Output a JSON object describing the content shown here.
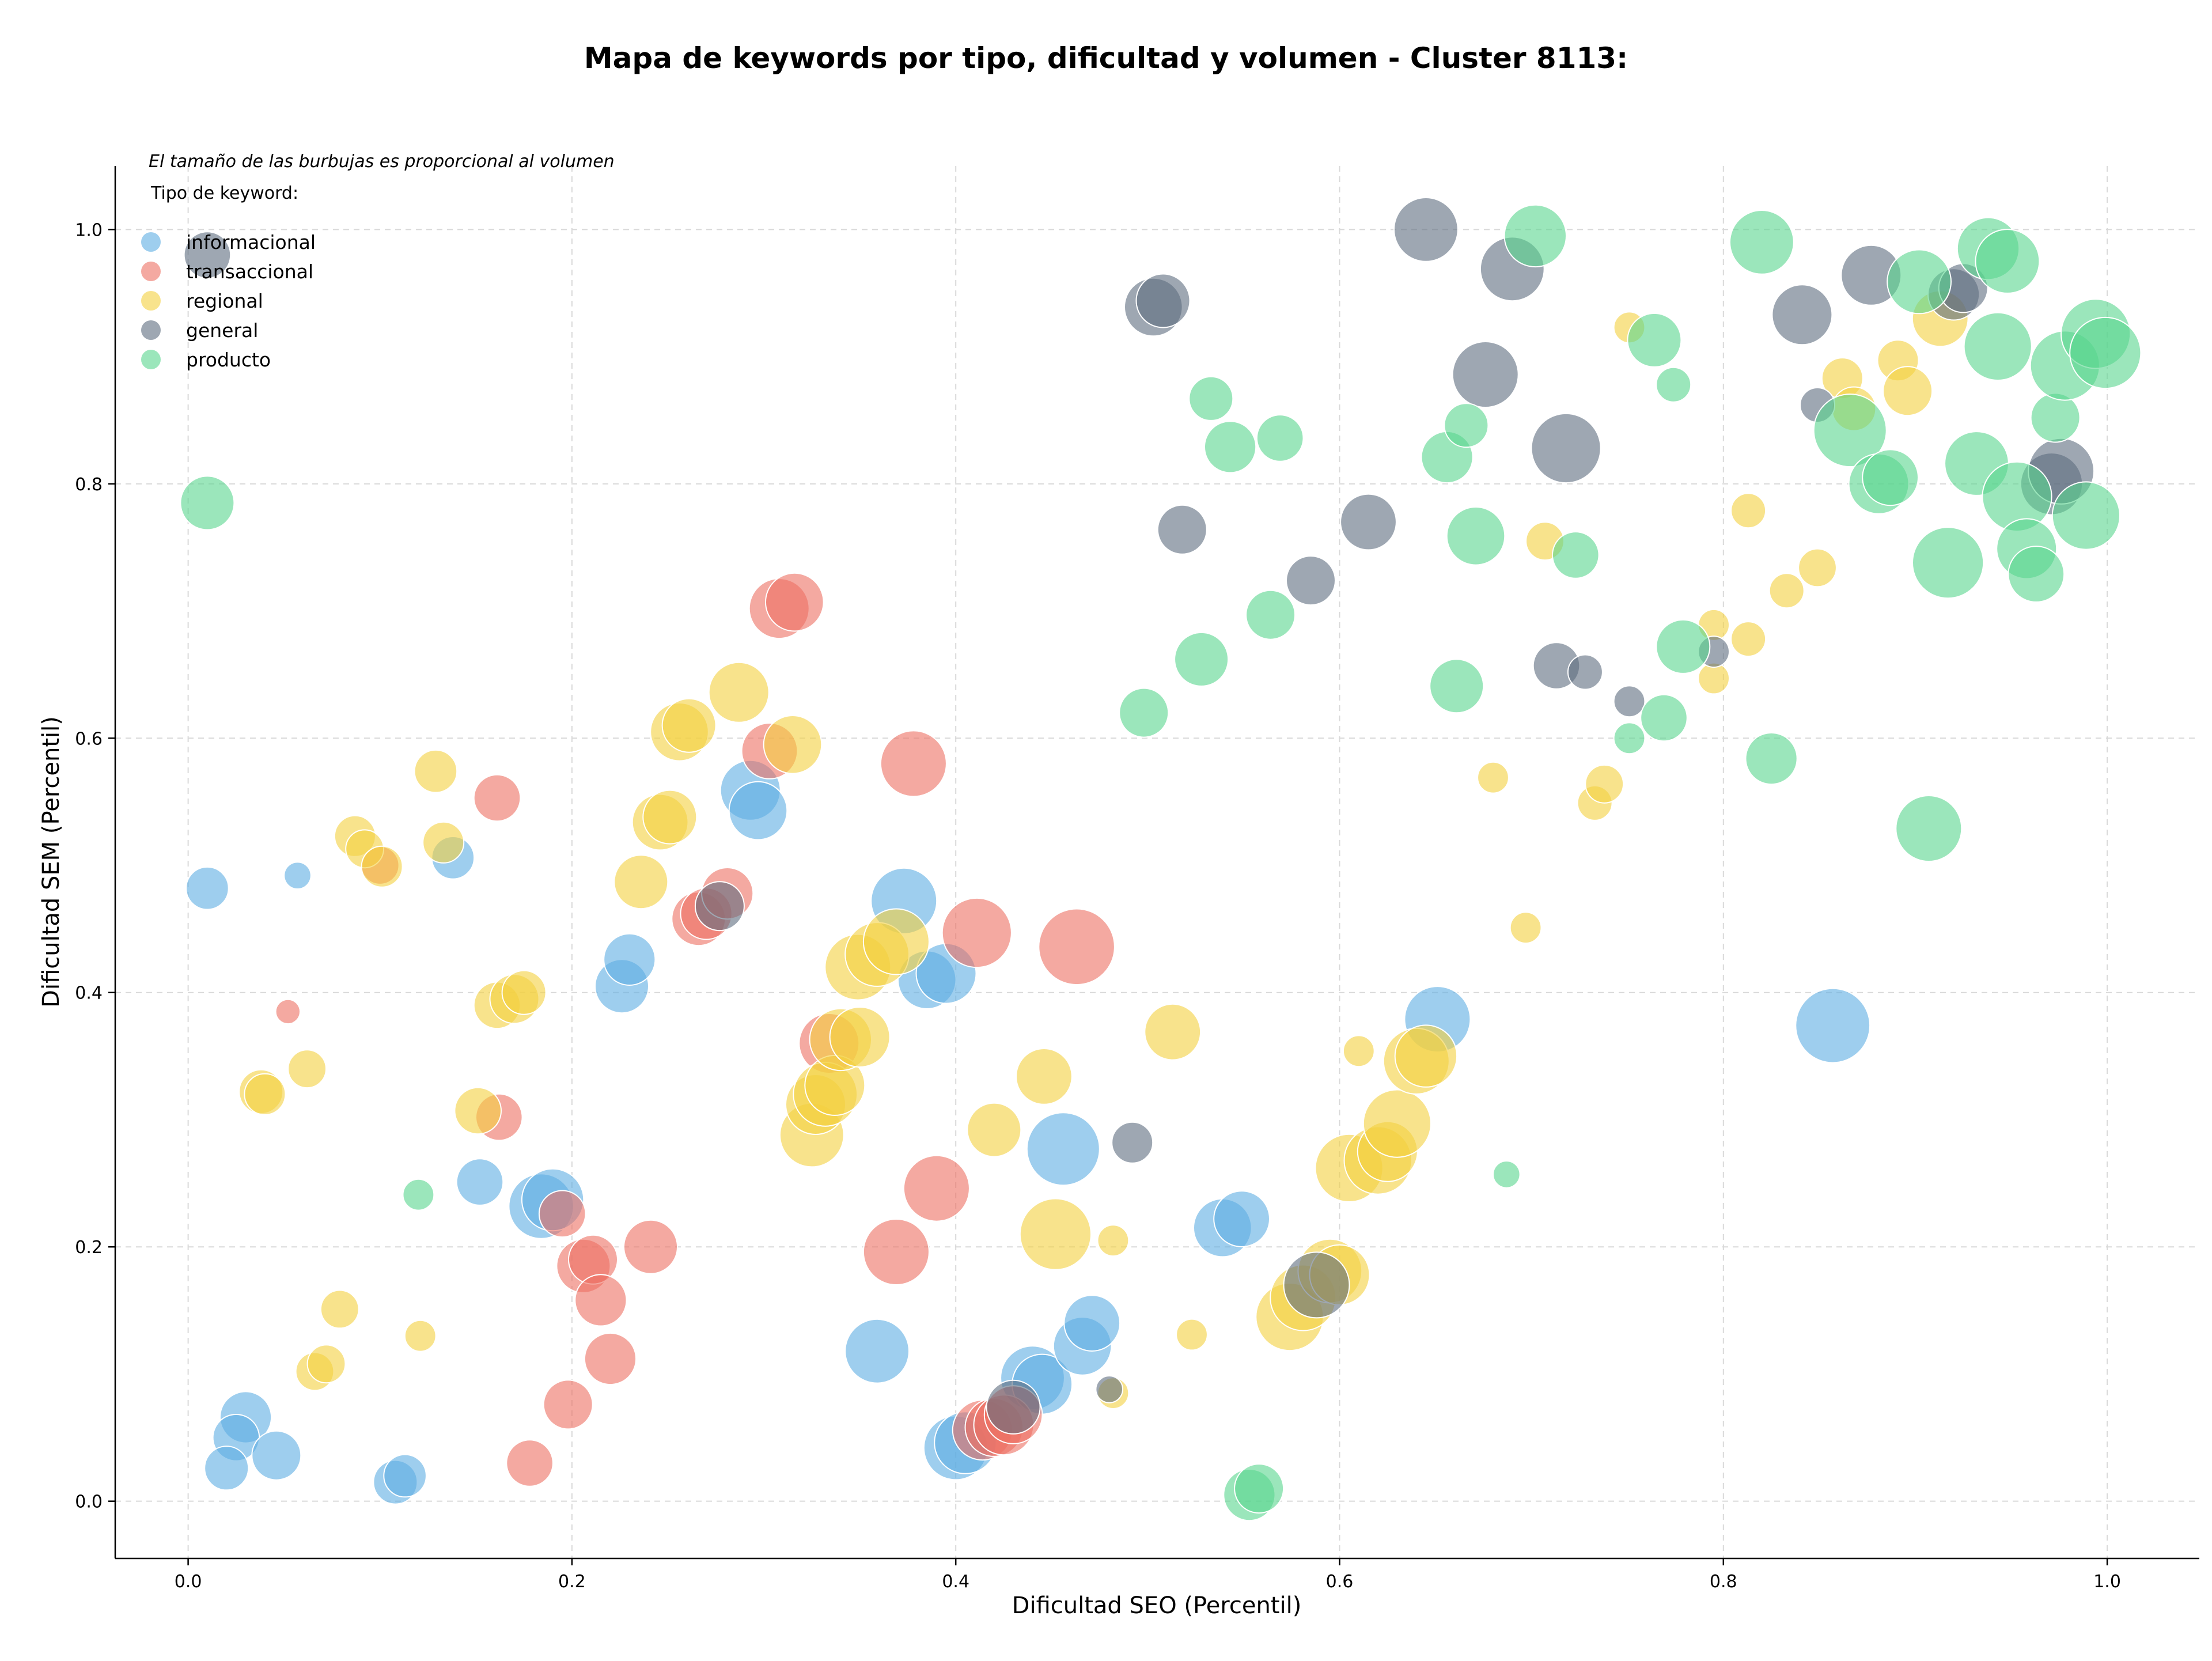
{
  "chart_data": {
    "type": "scatter",
    "title": "Mapa de keywords por tipo, dificultad y volumen - Cluster 8113:",
    "subtitle": "El tamaño de las burbujas es proporcional al volumen",
    "xlabel": "Dificultad SEO (Percentil)",
    "ylabel": "Dificultad SEM (Percentil)",
    "xlim": [
      -0.038,
      1.048
    ],
    "ylim": [
      -0.045,
      1.05
    ],
    "xticks": [
      "0.0",
      "0.2",
      "0.4",
      "0.6",
      "0.8",
      "1.0"
    ],
    "xtick_values": [
      0.0,
      0.2,
      0.4,
      0.6,
      0.8,
      1.0
    ],
    "yticks": [
      "0.0",
      "0.2",
      "0.4",
      "0.6",
      "0.8",
      "1.0"
    ],
    "ytick_values": [
      0.0,
      0.2,
      0.4,
      0.6,
      0.8,
      1.0
    ],
    "grid": true,
    "legend": {
      "title": "Tipo de keyword:",
      "placement": "top-left",
      "entries": [
        "informacional",
        "transaccional",
        "regional",
        "general",
        "producto"
      ]
    },
    "size_note": "bubble area proportional to keyword volume (relative units 1-100)",
    "series": [
      {
        "name": "informacional",
        "color": "#5dade2",
        "points": [
          {
            "x": 0.01,
            "y": 0.482,
            "v": 15
          },
          {
            "x": 0.057,
            "y": 0.492,
            "v": 6
          },
          {
            "x": 0.138,
            "y": 0.506,
            "v": 15
          },
          {
            "x": 0.03,
            "y": 0.066,
            "v": 22
          },
          {
            "x": 0.025,
            "y": 0.05,
            "v": 18
          },
          {
            "x": 0.02,
            "y": 0.026,
            "v": 16
          },
          {
            "x": 0.046,
            "y": 0.036,
            "v": 20
          },
          {
            "x": 0.108,
            "y": 0.015,
            "v": 16
          },
          {
            "x": 0.113,
            "y": 0.02,
            "v": 15
          },
          {
            "x": 0.152,
            "y": 0.251,
            "v": 18
          },
          {
            "x": 0.184,
            "y": 0.232,
            "v": 35
          },
          {
            "x": 0.19,
            "y": 0.237,
            "v": 32
          },
          {
            "x": 0.226,
            "y": 0.405,
            "v": 24
          },
          {
            "x": 0.23,
            "y": 0.426,
            "v": 22
          },
          {
            "x": 0.293,
            "y": 0.559,
            "v": 30
          },
          {
            "x": 0.297,
            "y": 0.543,
            "v": 28
          },
          {
            "x": 0.373,
            "y": 0.472,
            "v": 36
          },
          {
            "x": 0.385,
            "y": 0.41,
            "v": 28
          },
          {
            "x": 0.395,
            "y": 0.415,
            "v": 30
          },
          {
            "x": 0.359,
            "y": 0.118,
            "v": 34
          },
          {
            "x": 0.4,
            "y": 0.042,
            "v": 34
          },
          {
            "x": 0.405,
            "y": 0.046,
            "v": 32
          },
          {
            "x": 0.44,
            "y": 0.097,
            "v": 34
          },
          {
            "x": 0.445,
            "y": 0.092,
            "v": 30
          },
          {
            "x": 0.456,
            "y": 0.277,
            "v": 44
          },
          {
            "x": 0.466,
            "y": 0.122,
            "v": 28
          },
          {
            "x": 0.471,
            "y": 0.14,
            "v": 26
          },
          {
            "x": 0.539,
            "y": 0.215,
            "v": 28
          },
          {
            "x": 0.549,
            "y": 0.222,
            "v": 26
          },
          {
            "x": 0.651,
            "y": 0.379,
            "v": 36
          },
          {
            "x": 0.857,
            "y": 0.374,
            "v": 46
          }
        ]
      },
      {
        "name": "transaccional",
        "color": "#ec7063",
        "points": [
          {
            "x": 0.052,
            "y": 0.385,
            "v": 5
          },
          {
            "x": 0.1,
            "y": 0.5,
            "v": 12
          },
          {
            "x": 0.161,
            "y": 0.553,
            "v": 18
          },
          {
            "x": 0.162,
            "y": 0.302,
            "v": 18
          },
          {
            "x": 0.195,
            "y": 0.226,
            "v": 18
          },
          {
            "x": 0.198,
            "y": 0.076,
            "v": 20
          },
          {
            "x": 0.178,
            "y": 0.03,
            "v": 18
          },
          {
            "x": 0.206,
            "y": 0.185,
            "v": 24
          },
          {
            "x": 0.211,
            "y": 0.19,
            "v": 20
          },
          {
            "x": 0.215,
            "y": 0.158,
            "v": 22
          },
          {
            "x": 0.22,
            "y": 0.112,
            "v": 22
          },
          {
            "x": 0.241,
            "y": 0.2,
            "v": 24
          },
          {
            "x": 0.266,
            "y": 0.458,
            "v": 24
          },
          {
            "x": 0.27,
            "y": 0.462,
            "v": 22
          },
          {
            "x": 0.281,
            "y": 0.478,
            "v": 22
          },
          {
            "x": 0.303,
            "y": 0.59,
            "v": 26
          },
          {
            "x": 0.308,
            "y": 0.702,
            "v": 30
          },
          {
            "x": 0.316,
            "y": 0.707,
            "v": 28
          },
          {
            "x": 0.378,
            "y": 0.58,
            "v": 36
          },
          {
            "x": 0.411,
            "y": 0.447,
            "v": 40
          },
          {
            "x": 0.463,
            "y": 0.436,
            "v": 48
          },
          {
            "x": 0.39,
            "y": 0.246,
            "v": 36
          },
          {
            "x": 0.369,
            "y": 0.196,
            "v": 36
          },
          {
            "x": 0.414,
            "y": 0.056,
            "v": 30
          },
          {
            "x": 0.42,
            "y": 0.058,
            "v": 28
          },
          {
            "x": 0.425,
            "y": 0.06,
            "v": 30
          },
          {
            "x": 0.43,
            "y": 0.068,
            "v": 28
          },
          {
            "x": 0.334,
            "y": 0.36,
            "v": 30
          }
        ]
      },
      {
        "name": "regional",
        "color": "#f4d03f",
        "points": [
          {
            "x": 0.038,
            "y": 0.322,
            "v": 16
          },
          {
            "x": 0.04,
            "y": 0.32,
            "v": 14
          },
          {
            "x": 0.062,
            "y": 0.34,
            "v": 12
          },
          {
            "x": 0.087,
            "y": 0.523,
            "v": 14
          },
          {
            "x": 0.092,
            "y": 0.513,
            "v": 12
          },
          {
            "x": 0.101,
            "y": 0.499,
            "v": 14
          },
          {
            "x": 0.129,
            "y": 0.574,
            "v": 15
          },
          {
            "x": 0.133,
            "y": 0.518,
            "v": 14
          },
          {
            "x": 0.151,
            "y": 0.307,
            "v": 18
          },
          {
            "x": 0.161,
            "y": 0.39,
            "v": 18
          },
          {
            "x": 0.17,
            "y": 0.395,
            "v": 20
          },
          {
            "x": 0.175,
            "y": 0.4,
            "v": 16
          },
          {
            "x": 0.066,
            "y": 0.102,
            "v": 12
          },
          {
            "x": 0.072,
            "y": 0.108,
            "v": 12
          },
          {
            "x": 0.079,
            "y": 0.151,
            "v": 12
          },
          {
            "x": 0.121,
            "y": 0.13,
            "v": 8
          },
          {
            "x": 0.236,
            "y": 0.487,
            "v": 24
          },
          {
            "x": 0.246,
            "y": 0.534,
            "v": 26
          },
          {
            "x": 0.251,
            "y": 0.538,
            "v": 24
          },
          {
            "x": 0.256,
            "y": 0.605,
            "v": 28
          },
          {
            "x": 0.261,
            "y": 0.61,
            "v": 24
          },
          {
            "x": 0.287,
            "y": 0.636,
            "v": 30
          },
          {
            "x": 0.315,
            "y": 0.595,
            "v": 28
          },
          {
            "x": 0.325,
            "y": 0.288,
            "v": 34
          },
          {
            "x": 0.327,
            "y": 0.312,
            "v": 30
          },
          {
            "x": 0.332,
            "y": 0.32,
            "v": 34
          },
          {
            "x": 0.337,
            "y": 0.327,
            "v": 30
          },
          {
            "x": 0.34,
            "y": 0.363,
            "v": 32
          },
          {
            "x": 0.35,
            "y": 0.365,
            "v": 30
          },
          {
            "x": 0.349,
            "y": 0.42,
            "v": 36
          },
          {
            "x": 0.359,
            "y": 0.43,
            "v": 34
          },
          {
            "x": 0.369,
            "y": 0.44,
            "v": 36
          },
          {
            "x": 0.42,
            "y": 0.292,
            "v": 24
          },
          {
            "x": 0.446,
            "y": 0.334,
            "v": 26
          },
          {
            "x": 0.452,
            "y": 0.21,
            "v": 42
          },
          {
            "x": 0.482,
            "y": 0.205,
            "v": 8
          },
          {
            "x": 0.482,
            "y": 0.085,
            "v": 8
          },
          {
            "x": 0.513,
            "y": 0.369,
            "v": 26
          },
          {
            "x": 0.523,
            "y": 0.131,
            "v": 8
          },
          {
            "x": 0.574,
            "y": 0.145,
            "v": 38
          },
          {
            "x": 0.581,
            "y": 0.16,
            "v": 36
          },
          {
            "x": 0.595,
            "y": 0.181,
            "v": 34
          },
          {
            "x": 0.6,
            "y": 0.178,
            "v": 30
          },
          {
            "x": 0.605,
            "y": 0.262,
            "v": 38
          },
          {
            "x": 0.62,
            "y": 0.268,
            "v": 38
          },
          {
            "x": 0.625,
            "y": 0.275,
            "v": 30
          },
          {
            "x": 0.63,
            "y": 0.297,
            "v": 38
          },
          {
            "x": 0.64,
            "y": 0.346,
            "v": 36
          },
          {
            "x": 0.645,
            "y": 0.35,
            "v": 32
          },
          {
            "x": 0.61,
            "y": 0.354,
            "v": 8
          },
          {
            "x": 0.68,
            "y": 0.569,
            "v": 8
          },
          {
            "x": 0.697,
            "y": 0.451,
            "v": 8
          },
          {
            "x": 0.707,
            "y": 0.755,
            "v": 12
          },
          {
            "x": 0.733,
            "y": 0.549,
            "v": 10
          },
          {
            "x": 0.738,
            "y": 0.564,
            "v": 12
          },
          {
            "x": 0.751,
            "y": 0.923,
            "v": 8
          },
          {
            "x": 0.795,
            "y": 0.689,
            "v": 8
          },
          {
            "x": 0.795,
            "y": 0.647,
            "v": 8
          },
          {
            "x": 0.813,
            "y": 0.678,
            "v": 10
          },
          {
            "x": 0.813,
            "y": 0.779,
            "v": 10
          },
          {
            "x": 0.833,
            "y": 0.716,
            "v": 10
          },
          {
            "x": 0.849,
            "y": 0.734,
            "v": 12
          },
          {
            "x": 0.862,
            "y": 0.883,
            "v": 14
          },
          {
            "x": 0.868,
            "y": 0.859,
            "v": 16
          },
          {
            "x": 0.891,
            "y": 0.897,
            "v": 14
          },
          {
            "x": 0.896,
            "y": 0.873,
            "v": 20
          },
          {
            "x": 0.913,
            "y": 0.93,
            "v": 26
          }
        ]
      },
      {
        "name": "general",
        "color": "#5d6d7e",
        "points": [
          {
            "x": 0.01,
            "y": 0.98,
            "v": 18
          },
          {
            "x": 0.277,
            "y": 0.468,
            "v": 20
          },
          {
            "x": 0.43,
            "y": 0.074,
            "v": 24
          },
          {
            "x": 0.48,
            "y": 0.088,
            "v": 6
          },
          {
            "x": 0.492,
            "y": 0.282,
            "v": 14
          },
          {
            "x": 0.503,
            "y": 0.939,
            "v": 28
          },
          {
            "x": 0.508,
            "y": 0.944,
            "v": 24
          },
          {
            "x": 0.518,
            "y": 0.764,
            "v": 20
          },
          {
            "x": 0.585,
            "y": 0.724,
            "v": 20
          },
          {
            "x": 0.588,
            "y": 0.17,
            "v": 36
          },
          {
            "x": 0.615,
            "y": 0.77,
            "v": 26
          },
          {
            "x": 0.645,
            "y": 1.0,
            "v": 34
          },
          {
            "x": 0.676,
            "y": 0.886,
            "v": 36
          },
          {
            "x": 0.69,
            "y": 0.969,
            "v": 34
          },
          {
            "x": 0.713,
            "y": 0.657,
            "v": 18
          },
          {
            "x": 0.718,
            "y": 0.828,
            "v": 40
          },
          {
            "x": 0.728,
            "y": 0.652,
            "v": 10
          },
          {
            "x": 0.751,
            "y": 0.629,
            "v": 8
          },
          {
            "x": 0.795,
            "y": 0.668,
            "v": 8
          },
          {
            "x": 0.841,
            "y": 0.933,
            "v": 30
          },
          {
            "x": 0.849,
            "y": 0.862,
            "v": 10
          },
          {
            "x": 0.877,
            "y": 0.964,
            "v": 30
          },
          {
            "x": 0.92,
            "y": 0.949,
            "v": 22
          },
          {
            "x": 0.925,
            "y": 0.954,
            "v": 20
          },
          {
            "x": 0.971,
            "y": 0.8,
            "v": 32
          },
          {
            "x": 0.976,
            "y": 0.81,
            "v": 36
          }
        ]
      },
      {
        "name": "producto",
        "color": "#58d68d",
        "points": [
          {
            "x": 0.01,
            "y": 0.785,
            "v": 24
          },
          {
            "x": 0.12,
            "y": 0.241,
            "v": 8
          },
          {
            "x": 0.498,
            "y": 0.62,
            "v": 20
          },
          {
            "x": 0.528,
            "y": 0.662,
            "v": 24
          },
          {
            "x": 0.533,
            "y": 0.867,
            "v": 16
          },
          {
            "x": 0.543,
            "y": 0.829,
            "v": 22
          },
          {
            "x": 0.553,
            "y": 0.005,
            "v": 22
          },
          {
            "x": 0.558,
            "y": 0.01,
            "v": 20
          },
          {
            "x": 0.564,
            "y": 0.697,
            "v": 20
          },
          {
            "x": 0.569,
            "y": 0.836,
            "v": 18
          },
          {
            "x": 0.656,
            "y": 0.821,
            "v": 22
          },
          {
            "x": 0.661,
            "y": 0.641,
            "v": 24
          },
          {
            "x": 0.666,
            "y": 0.846,
            "v": 16
          },
          {
            "x": 0.671,
            "y": 0.759,
            "v": 28
          },
          {
            "x": 0.687,
            "y": 0.257,
            "v": 6
          },
          {
            "x": 0.702,
            "y": 0.995,
            "v": 32
          },
          {
            "x": 0.723,
            "y": 0.744,
            "v": 18
          },
          {
            "x": 0.751,
            "y": 0.6,
            "v": 8
          },
          {
            "x": 0.764,
            "y": 0.913,
            "v": 24
          },
          {
            "x": 0.769,
            "y": 0.616,
            "v": 18
          },
          {
            "x": 0.774,
            "y": 0.878,
            "v": 10
          },
          {
            "x": 0.779,
            "y": 0.672,
            "v": 24
          },
          {
            "x": 0.82,
            "y": 0.99,
            "v": 34
          },
          {
            "x": 0.825,
            "y": 0.584,
            "v": 22
          },
          {
            "x": 0.866,
            "y": 0.842,
            "v": 44
          },
          {
            "x": 0.881,
            "y": 0.8,
            "v": 30
          },
          {
            "x": 0.887,
            "y": 0.805,
            "v": 26
          },
          {
            "x": 0.902,
            "y": 0.959,
            "v": 34
          },
          {
            "x": 0.907,
            "y": 0.529,
            "v": 36
          },
          {
            "x": 0.917,
            "y": 0.738,
            "v": 42
          },
          {
            "x": 0.932,
            "y": 0.816,
            "v": 34
          },
          {
            "x": 0.938,
            "y": 0.985,
            "v": 32
          },
          {
            "x": 0.943,
            "y": 0.908,
            "v": 38
          },
          {
            "x": 0.948,
            "y": 0.975,
            "v": 34
          },
          {
            "x": 0.953,
            "y": 0.79,
            "v": 40
          },
          {
            "x": 0.958,
            "y": 0.749,
            "v": 30
          },
          {
            "x": 0.963,
            "y": 0.729,
            "v": 26
          },
          {
            "x": 0.973,
            "y": 0.852,
            "v": 20
          },
          {
            "x": 0.978,
            "y": 0.893,
            "v": 40
          },
          {
            "x": 0.989,
            "y": 0.775,
            "v": 38
          },
          {
            "x": 0.994,
            "y": 0.918,
            "v": 40
          },
          {
            "x": 0.999,
            "y": 0.903,
            "v": 42
          }
        ]
      }
    ]
  }
}
